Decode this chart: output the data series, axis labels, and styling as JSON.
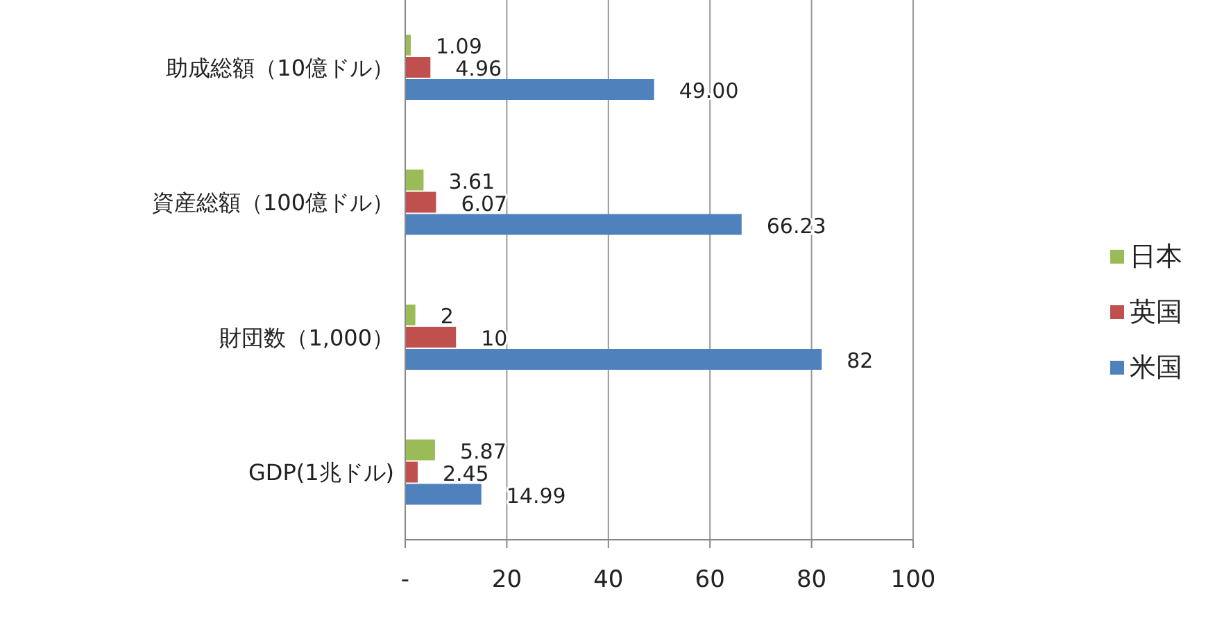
{
  "chart_data": {
    "type": "bar",
    "orientation": "horizontal",
    "categories": [
      "助成総額（10億ドル）",
      "資産総額（100億ドル）",
      "財団数（1,000）",
      "GDP(1兆ドル)"
    ],
    "series": [
      {
        "name": "日本",
        "color": "#9bbb59",
        "values": [
          1.09,
          3.61,
          2,
          5.87
        ],
        "value_labels": [
          "1.09",
          "3.61",
          "2",
          "5.87"
        ]
      },
      {
        "name": "英国",
        "color": "#c0504d",
        "values": [
          4.96,
          6.07,
          10,
          2.45
        ],
        "value_labels": [
          "4.96",
          "6.07",
          "10",
          "2.45"
        ]
      },
      {
        "name": "米国",
        "color": "#4f81bd",
        "values": [
          49,
          66.23,
          82,
          14.99
        ],
        "value_labels": [
          "49.00",
          "66.23",
          "82",
          "14.99"
        ]
      }
    ],
    "xlim": [
      0,
      100
    ],
    "xticks": [
      {
        "value": 0,
        "label": "-"
      },
      20,
      40,
      60,
      80,
      100
    ],
    "grid": "x",
    "legend": "right"
  }
}
